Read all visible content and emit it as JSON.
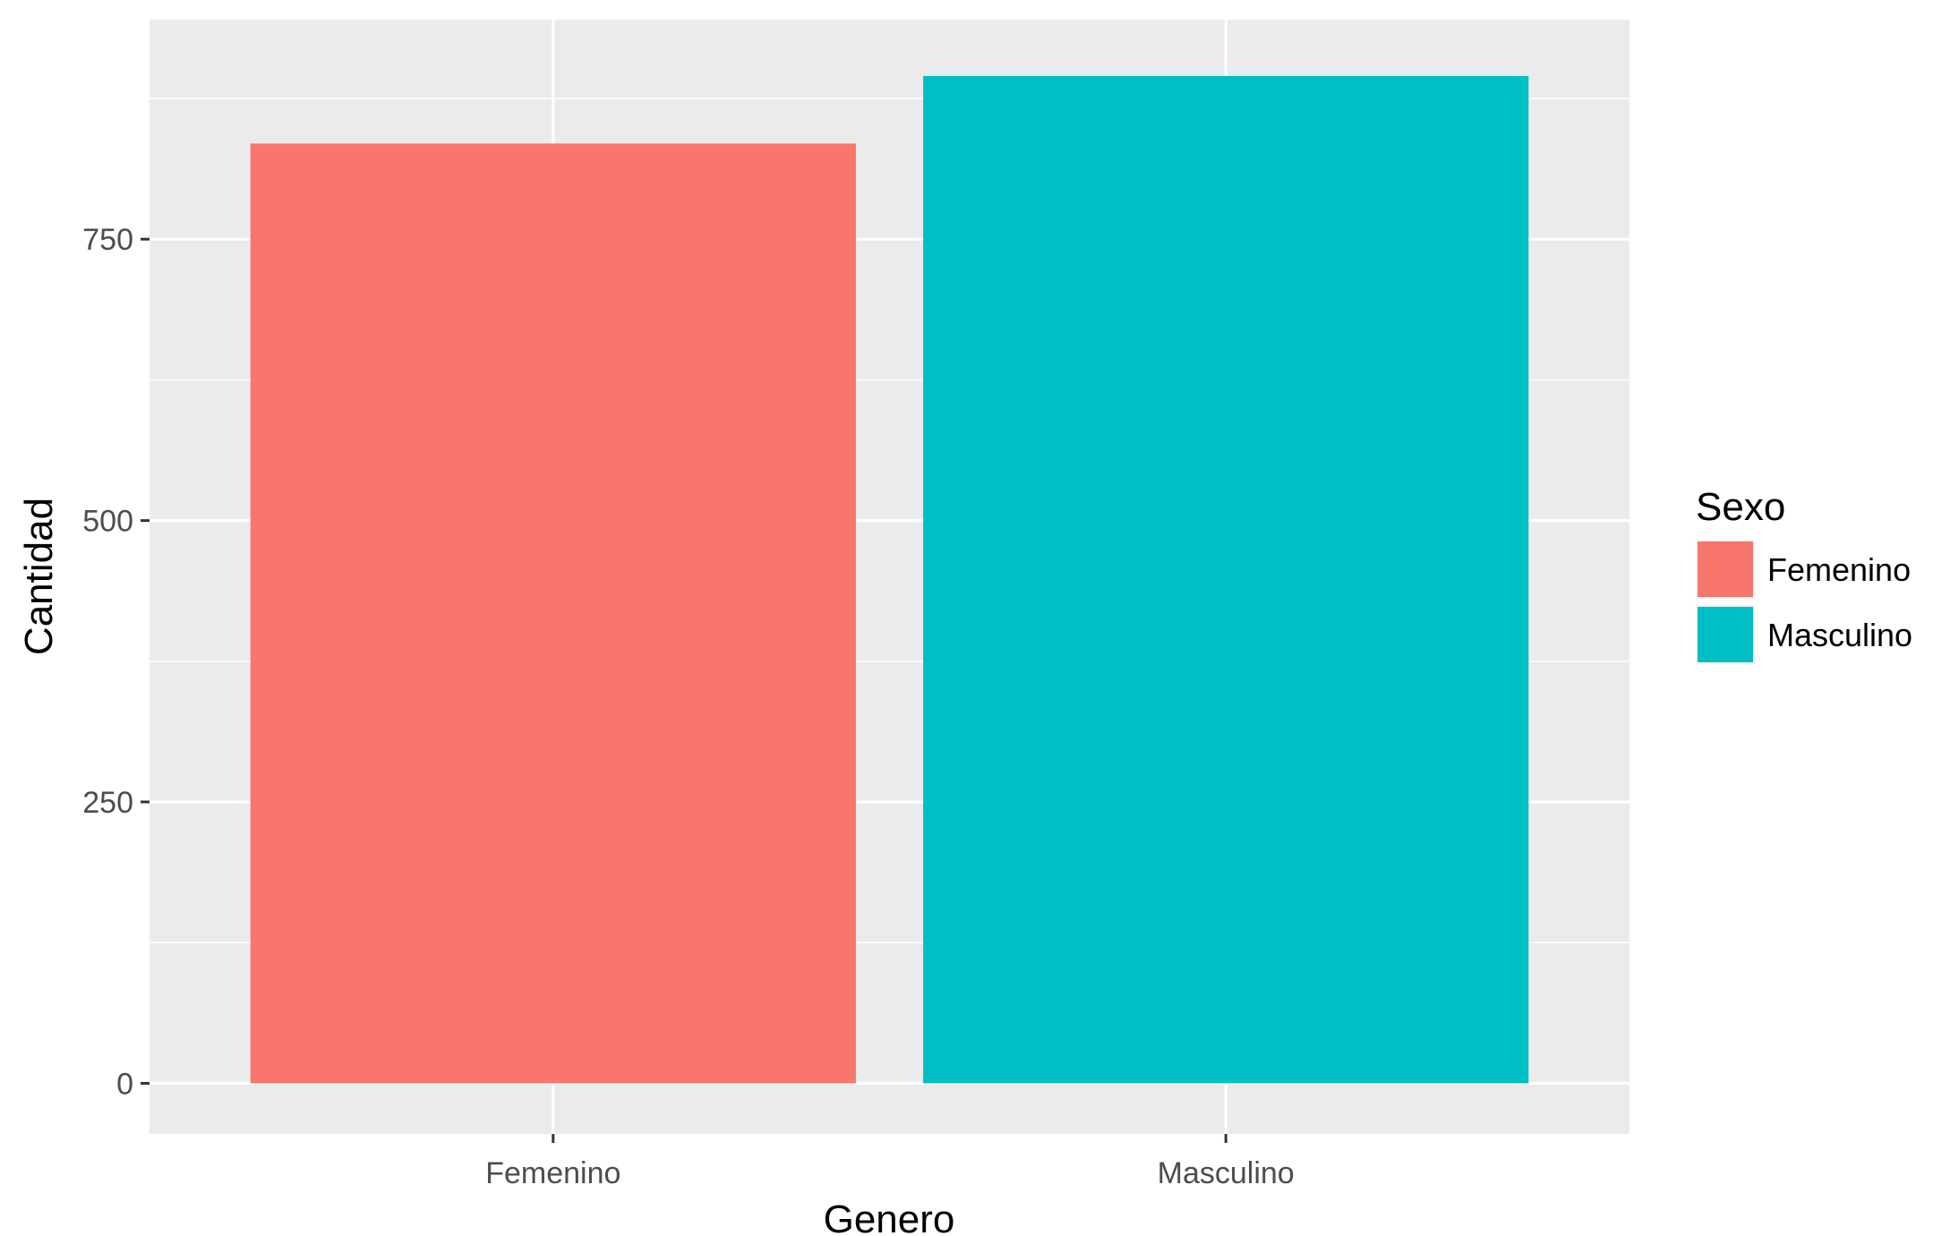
{
  "chart_data": {
    "type": "bar",
    "categories": [
      "Femenino",
      "Masculino"
    ],
    "values": [
      835,
      895
    ],
    "colors": [
      "#f8766d",
      "#00bfc4"
    ],
    "xlabel": "Genero",
    "ylabel": "Cantidad",
    "ylim": [
      -45,
      945
    ],
    "yticks": [
      0,
      250,
      500,
      750
    ],
    "ytick_labels": [
      "0",
      "250",
      "500",
      "750"
    ],
    "grid": true,
    "panel_background": "#ebebeb",
    "legend": {
      "title": "Sexo",
      "placement": "right",
      "items": [
        {
          "label": "Femenino",
          "color": "#f8766d"
        },
        {
          "label": "Masculino",
          "color": "#00bfc4"
        }
      ]
    }
  }
}
